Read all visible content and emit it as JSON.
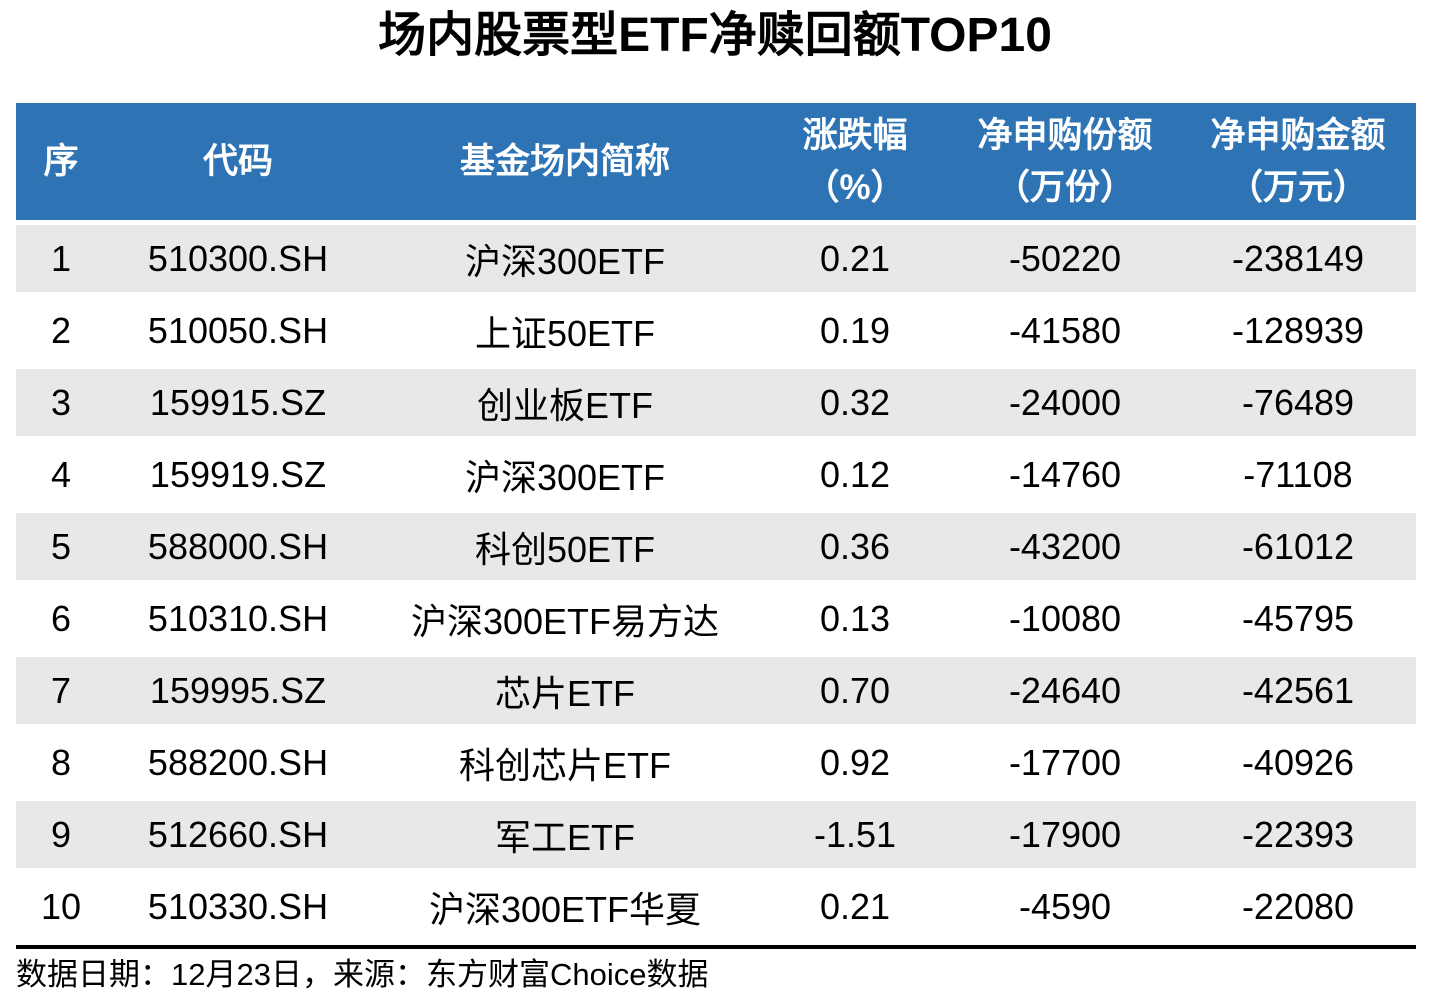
{
  "title": "场内股票型ETF净赎回额TOP10",
  "chart_data": {
    "type": "table",
    "title": "场内股票型ETF净赎回额TOP10",
    "columns": [
      {
        "label": "序",
        "unit": ""
      },
      {
        "label": "代码",
        "unit": ""
      },
      {
        "label": "基金场内简称",
        "unit": ""
      },
      {
        "label": "涨跌幅",
        "unit": "（%）"
      },
      {
        "label": "净申购份额",
        "unit": "（万份）"
      },
      {
        "label": "净申购金额",
        "unit": "（万元）"
      }
    ],
    "rows": [
      [
        "1",
        "510300.SH",
        "沪深300ETF",
        "0.21",
        "-50220",
        "-238149"
      ],
      [
        "2",
        "510050.SH",
        "上证50ETF",
        "0.19",
        "-41580",
        "-128939"
      ],
      [
        "3",
        "159915.SZ",
        "创业板ETF",
        "0.32",
        "-24000",
        "-76489"
      ],
      [
        "4",
        "159919.SZ",
        "沪深300ETF",
        "0.12",
        "-14760",
        "-71108"
      ],
      [
        "5",
        "588000.SH",
        "科创50ETF",
        "0.36",
        "-43200",
        "-61012"
      ],
      [
        "6",
        "510310.SH",
        "沪深300ETF易方达",
        "0.13",
        "-10080",
        "-45795"
      ],
      [
        "7",
        "159995.SZ",
        "芯片ETF",
        "0.70",
        "-24640",
        "-42561"
      ],
      [
        "8",
        "588200.SH",
        "科创芯片ETF",
        "0.92",
        "-17700",
        "-40926"
      ],
      [
        "9",
        "512660.SH",
        "军工ETF",
        "-1.51",
        "-17900",
        "-22393"
      ],
      [
        "10",
        "510330.SH",
        "沪深300ETF华夏",
        "0.21",
        "-4590",
        "-22080"
      ]
    ]
  },
  "footer": "数据日期：12月23日，来源：东方财富Choice数据",
  "colors": {
    "header_bg": "#2E74B5",
    "header_text": "#FFFFFF",
    "row_alt_bg": "#E9E8E6",
    "divider": "#000000",
    "body_text": "#000000"
  }
}
